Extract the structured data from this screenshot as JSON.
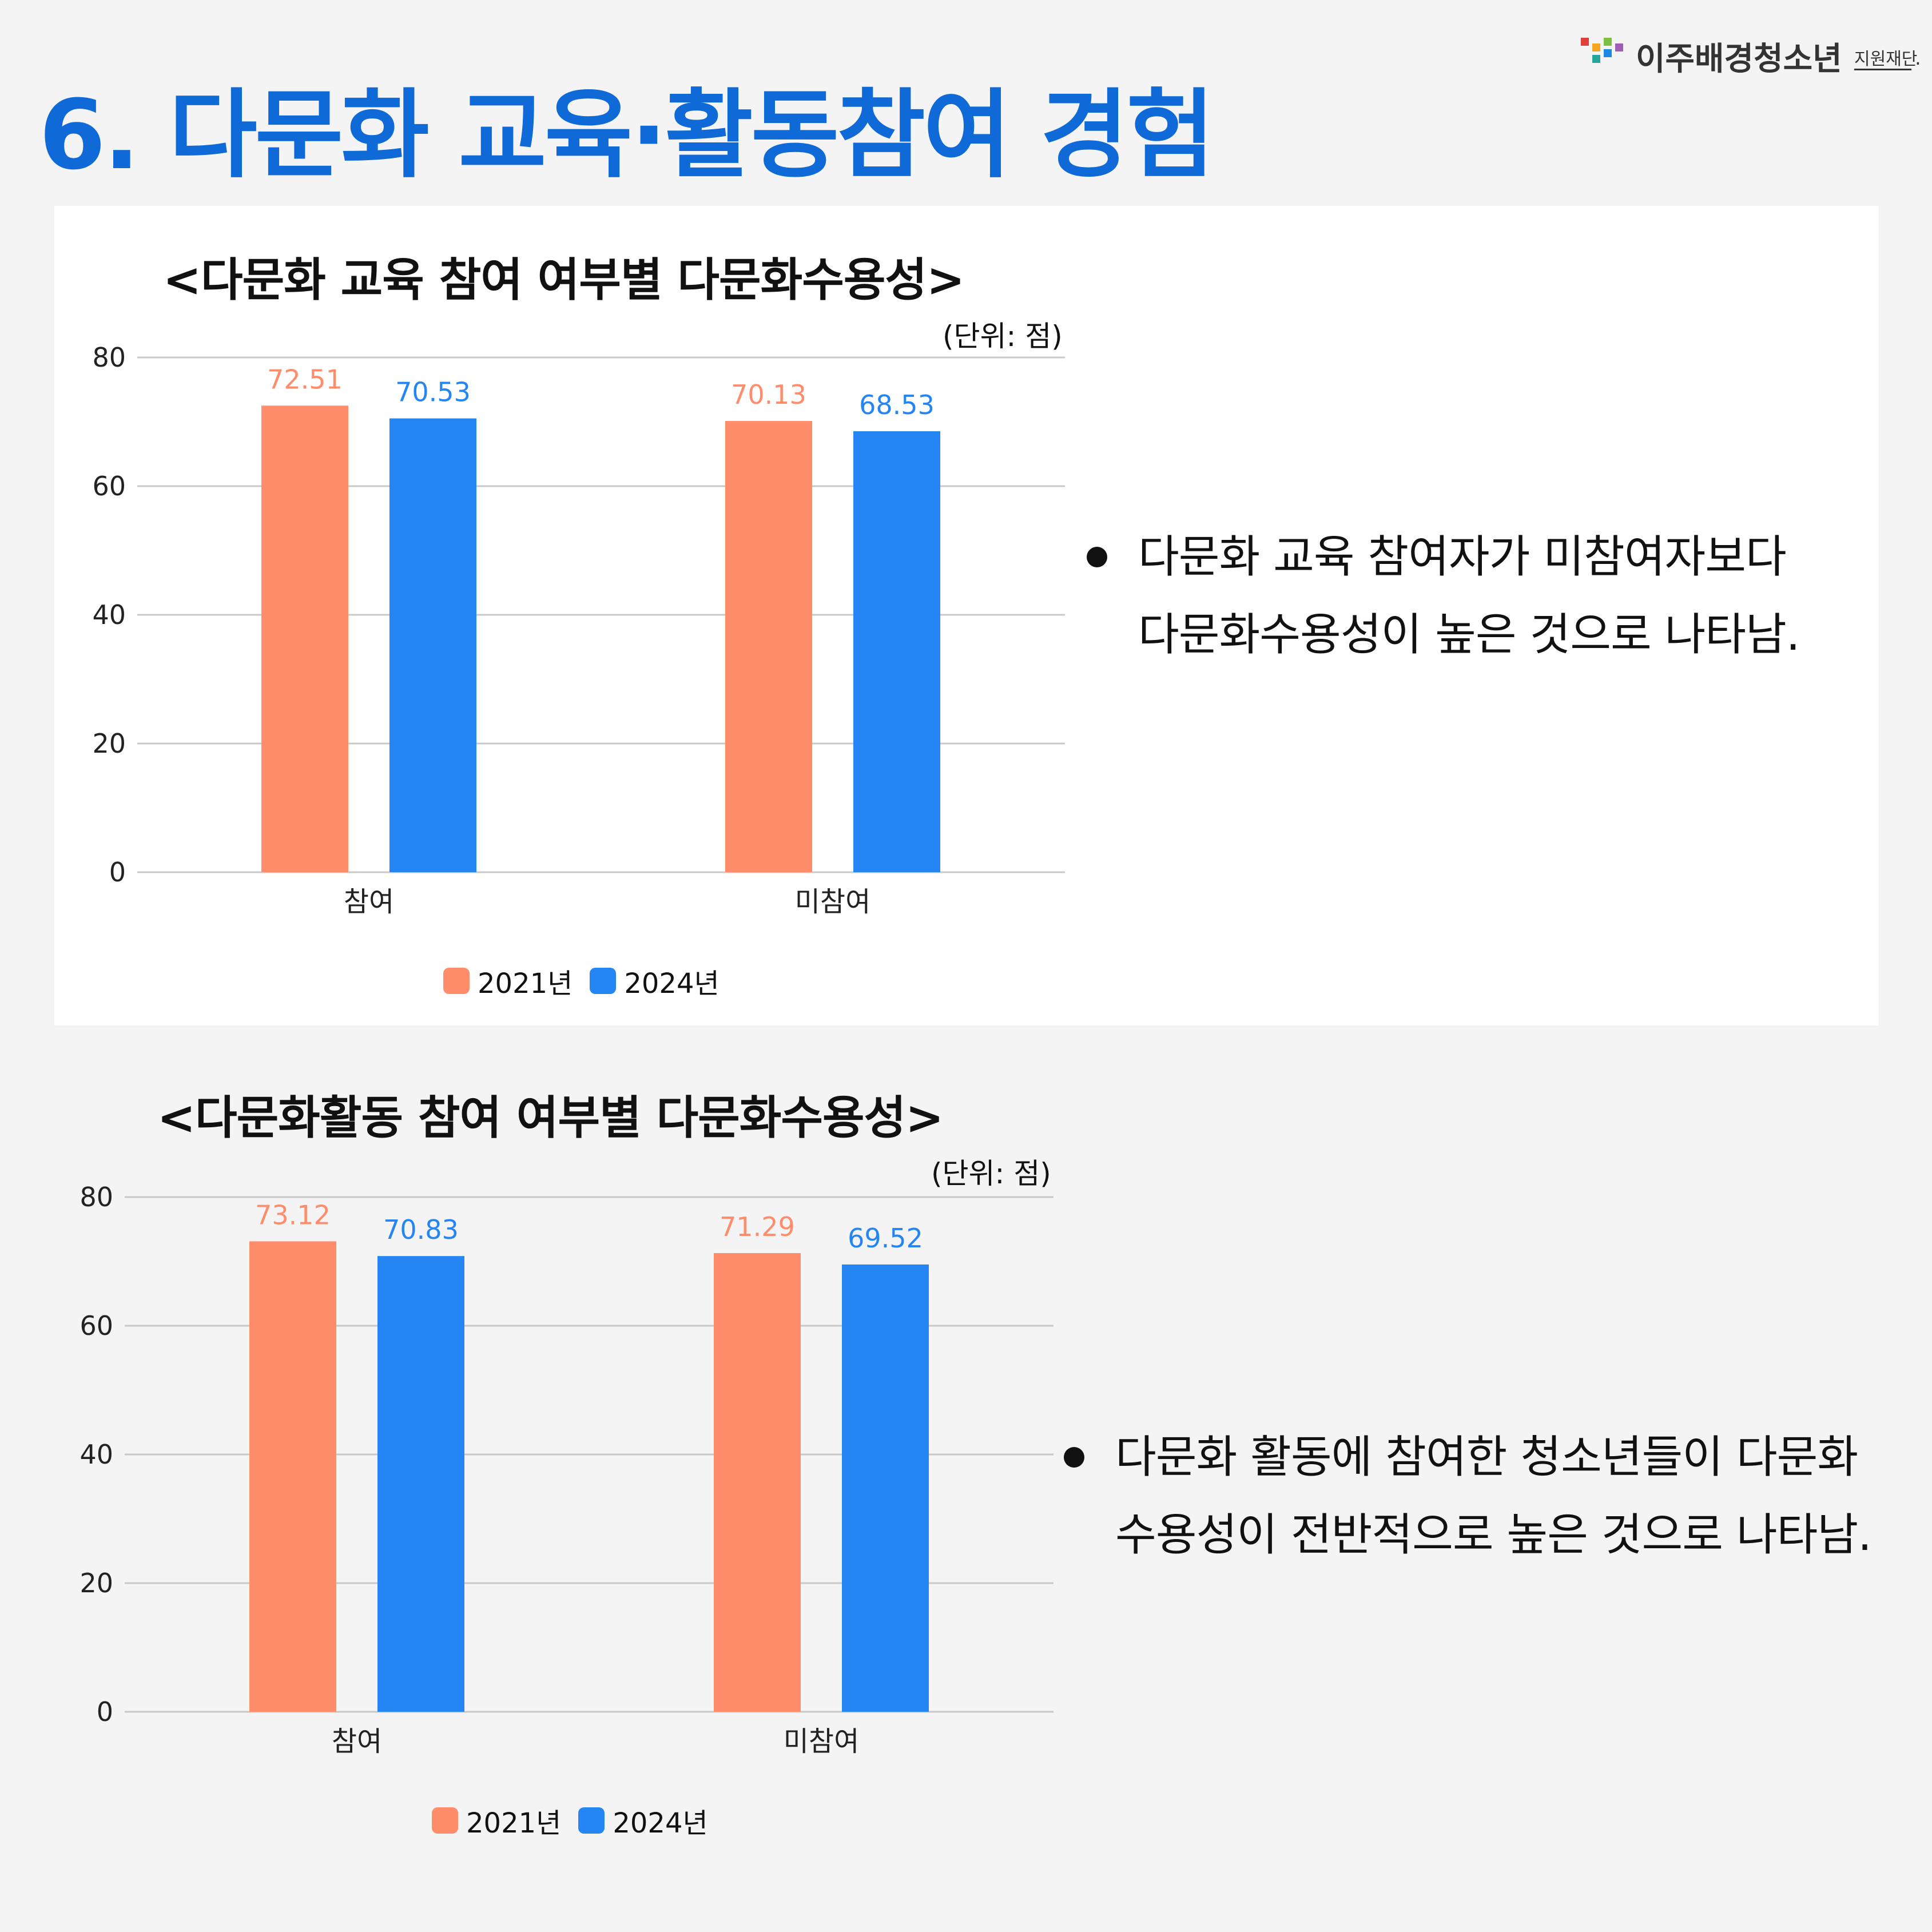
{
  "header": {
    "title": "6. 다문화 교육·활동참여 경험",
    "logo_name": "이주배경청소년",
    "logo_suffix": "지원재단",
    "logo_dot": "."
  },
  "colors": {
    "title_blue": "#0f6ad8",
    "series_2021": "#ff8c6b",
    "series_2024": "#2585f3",
    "grid": "#c8c8c8"
  },
  "chart_data": [
    {
      "type": "bar",
      "title": "<다문화 교육 참여 여부별 다문화수용성>",
      "unit": "(단위: 점)",
      "categories": [
        "참여",
        "미참여"
      ],
      "series": [
        {
          "name": "2021년",
          "color": "#ff8c6b",
          "values": [
            72.51,
            70.13
          ]
        },
        {
          "name": "2024년",
          "color": "#2585f3",
          "values": [
            70.53,
            68.53
          ]
        }
      ],
      "ylim": [
        0,
        80
      ],
      "yticks": [
        0,
        20,
        40,
        60,
        80
      ],
      "grid": true,
      "legend": "bottom-center"
    },
    {
      "type": "bar",
      "title": "<다문화활동 참여 여부별 다문화수용성>",
      "unit": "(단위: 점)",
      "categories": [
        "참여",
        "미참여"
      ],
      "series": [
        {
          "name": "2021년",
          "color": "#ff8c6b",
          "values": [
            73.12,
            71.29
          ]
        },
        {
          "name": "2024년",
          "color": "#2585f3",
          "values": [
            70.83,
            69.52
          ]
        }
      ],
      "ylim": [
        0,
        80
      ],
      "yticks": [
        0,
        20,
        40,
        60,
        80
      ],
      "grid": true,
      "legend": "bottom-center"
    }
  ],
  "notes": [
    {
      "line1": "다문화 교육 참여자가 미참여자보다",
      "line2": "다문화수용성이 높은 것으로 나타남."
    },
    {
      "line1": "다문화 활동에 참여한 청소년들이 다문화",
      "line2": "수용성이 전반적으로 높은 것으로 나타남."
    }
  ]
}
